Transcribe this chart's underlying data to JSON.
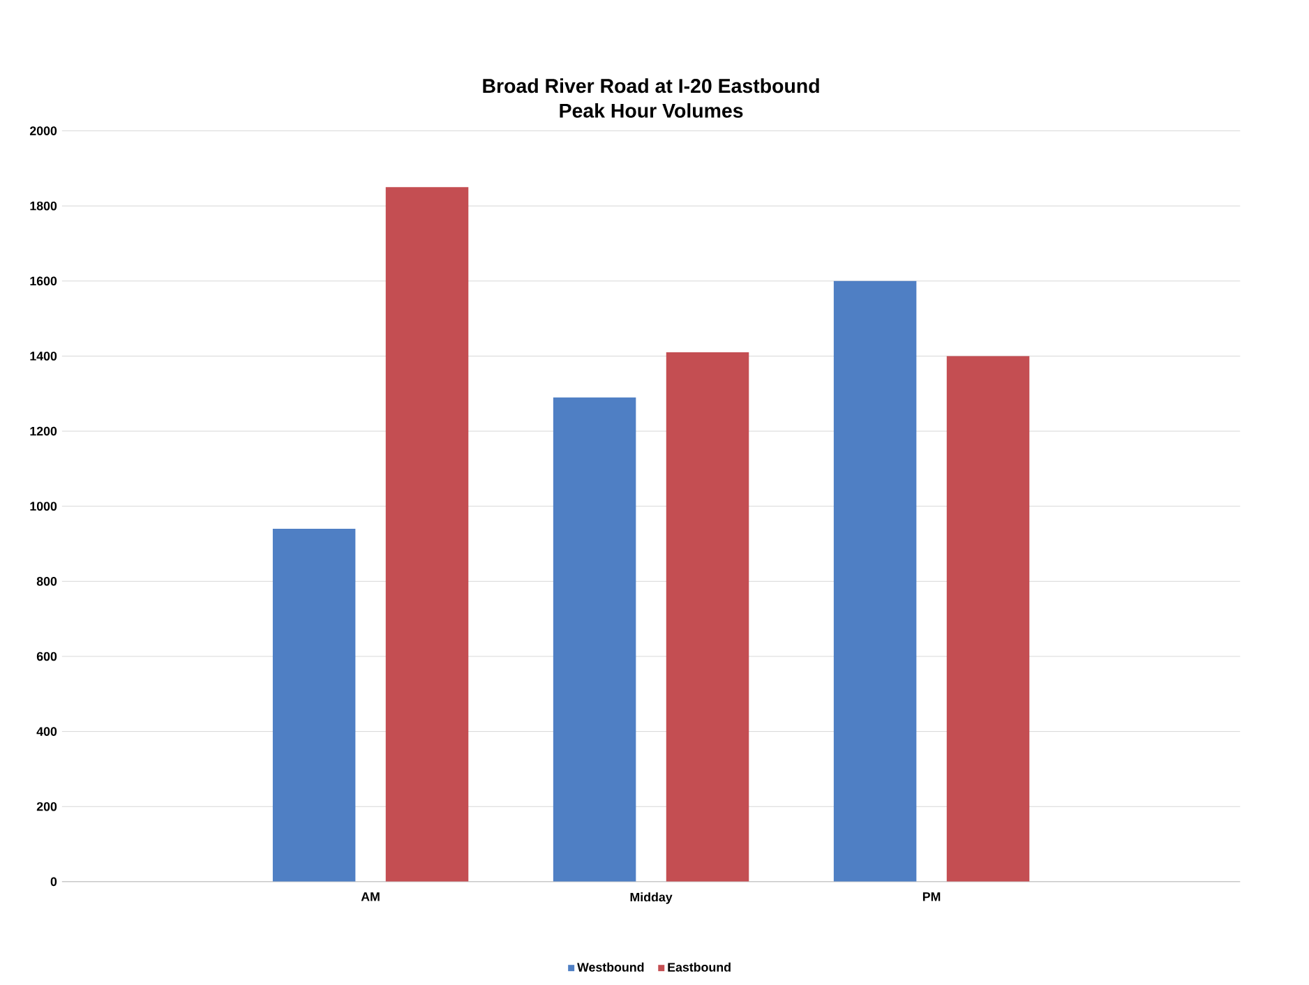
{
  "chart_data": {
    "type": "bar",
    "title": "Broad River Road at I-20 Eastbound\nPeak Hour Volumes",
    "categories": [
      "AM",
      "Midday",
      "PM"
    ],
    "series": [
      {
        "name": "Westbound",
        "color": "#4f7fc4",
        "values": [
          940,
          1290,
          1600
        ]
      },
      {
        "name": "Eastbound",
        "color": "#c44e52",
        "values": [
          1850,
          1410,
          1400
        ]
      }
    ],
    "ylim": [
      0,
      2000
    ],
    "yticks": [
      0,
      200,
      400,
      600,
      800,
      1000,
      1200,
      1400,
      1600,
      1800,
      2000
    ],
    "grid": "y",
    "legend": "bottom"
  }
}
